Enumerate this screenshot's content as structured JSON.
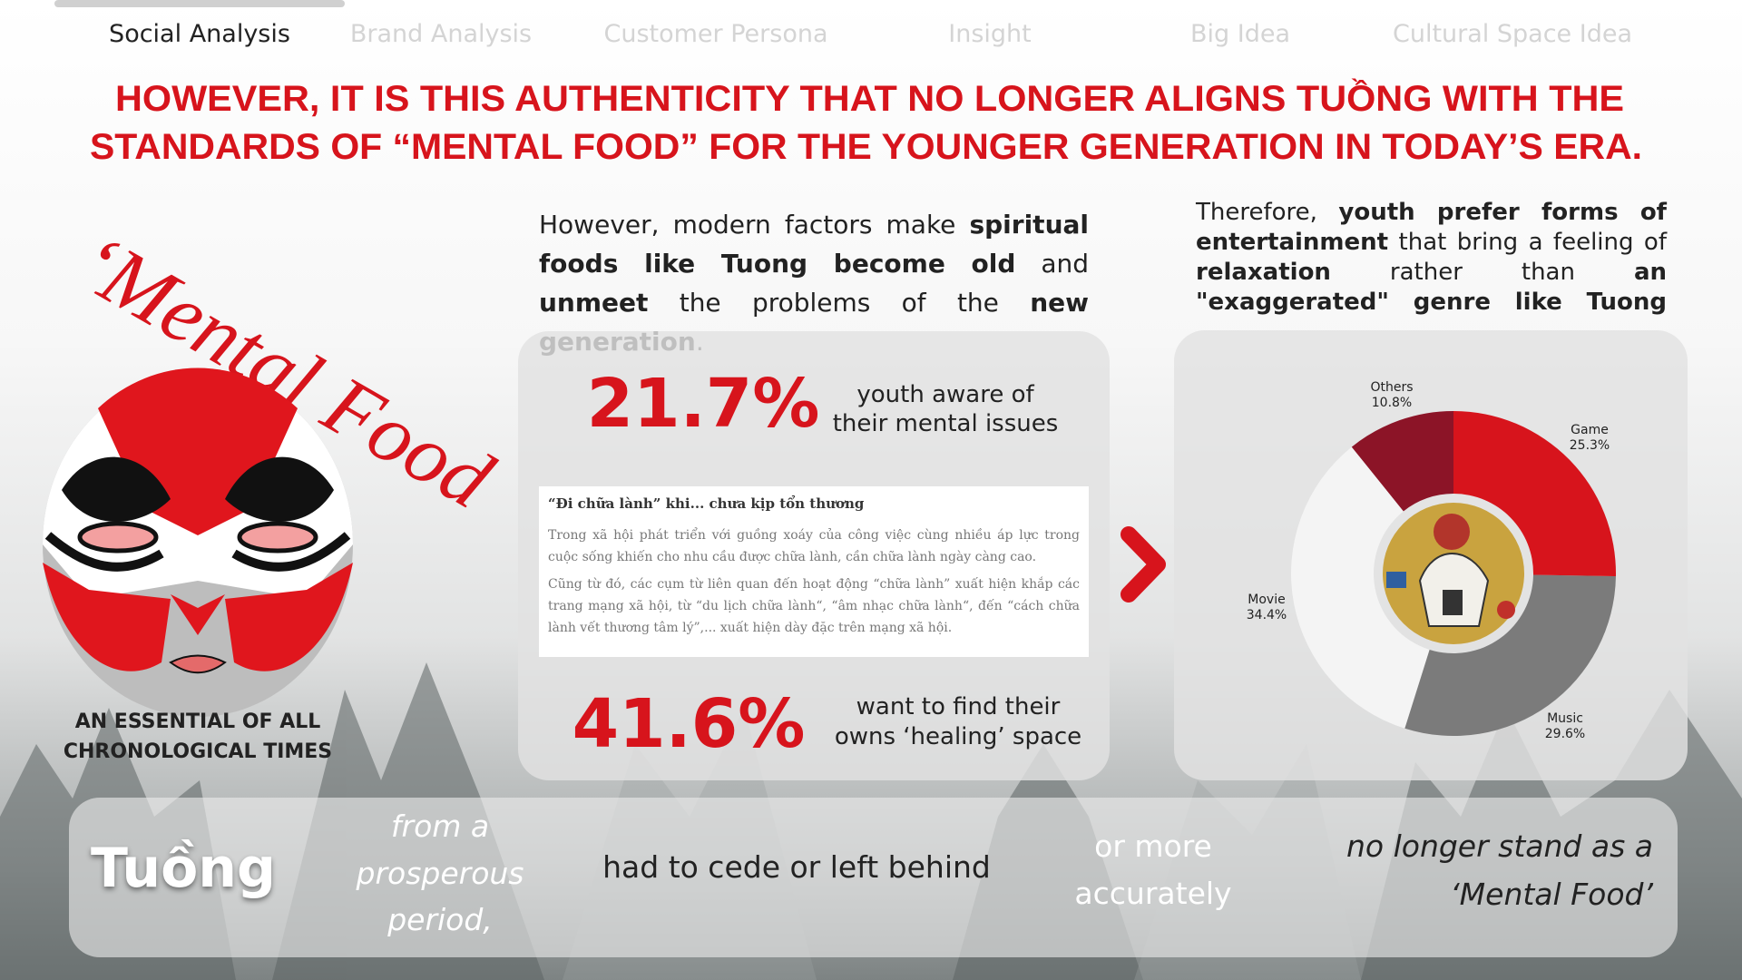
{
  "nav": [
    "Social Analysis",
    "Brand Analysis",
    "Customer Persona",
    "Insight",
    "Big Idea",
    "Cultural Space Idea"
  ],
  "headline": [
    "HOWEVER, IT IS THIS AUTHENTICITY THAT NO LONGER ALIGNS TUỒNG WITH THE",
    "STANDARDS OF “MENTAL FOOD” FOR THE YOUNGER GENERATION IN TODAY’S ERA."
  ],
  "left": {
    "script": "‘Mental Food",
    "caption": [
      "AN ESSENTIAL OF ALL",
      "CHRONOLOGICAL TIMES"
    ]
  },
  "paragraph_left": {
    "runs": [
      {
        "text": "However, modern factors make ",
        "bold": false
      },
      {
        "text": "spiritual foods like Tuong become old",
        "bold": true
      },
      {
        "text": " and ",
        "bold": false
      },
      {
        "text": "unmeet",
        "bold": true
      },
      {
        "text": " the problems of the ",
        "bold": false
      },
      {
        "text": "new generation",
        "bold": true
      },
      {
        "text": ".",
        "bold": false
      }
    ]
  },
  "paragraph_right": {
    "runs": [
      {
        "text": "Therefore, ",
        "bold": false
      },
      {
        "text": "youth prefer forms of entertainment",
        "bold": true
      },
      {
        "text": " that bring a feeling of ",
        "bold": false
      },
      {
        "text": "relaxation",
        "bold": true
      },
      {
        "text": " rather than ",
        "bold": false
      },
      {
        "text": "an \"exaggerated\" genre like Tuong",
        "bold": true
      }
    ]
  },
  "stats": [
    {
      "value": "21.7%",
      "text": [
        "youth aware of",
        "their mental issues"
      ]
    },
    {
      "value": "41.6%",
      "text": [
        "want to find their",
        "owns ‘healing’ space"
      ]
    }
  ],
  "article": {
    "title": "“Đi chữa lành” khi... chưa kịp tổn thương",
    "paragraphs": [
      "Trong xã hội phát triển với guồng xoáy của công việc cùng nhiều áp lực trong cuộc sống khiến cho nhu cầu được chữa lành, cần chữa lành ngày càng cao.",
      "Cũng từ đó, các cụm từ liên quan đến hoạt động “chữa lành” xuất hiện khắp các trang mạng xã hội, từ “du lịch chữa lành“, “âm nhạc chữa lành“, đến “cách chữa lành vết thương tâm lý”,... xuất hiện dày đặc trên mạng xã hội."
    ]
  },
  "donut": {
    "type": "donut",
    "categories": [
      "Game",
      "Music",
      "Movie",
      "Others"
    ],
    "values": [
      25.3,
      29.6,
      34.4,
      10.8
    ],
    "value_labels": [
      "25.3%",
      "29.6%",
      "34.4%",
      "10.8%"
    ],
    "colors": [
      "#d7141c",
      "#7b7b7b",
      "#f4f4f4",
      "#8c1427"
    ]
  },
  "bottom": {
    "subject": "Tuồng",
    "from": [
      "from a",
      "prosperous",
      "period,"
    ],
    "middle": "had to cede or left behind",
    "more": [
      "or more",
      "accurately"
    ],
    "end": [
      "no longer stand as a",
      "‘Mental Food’"
    ]
  }
}
